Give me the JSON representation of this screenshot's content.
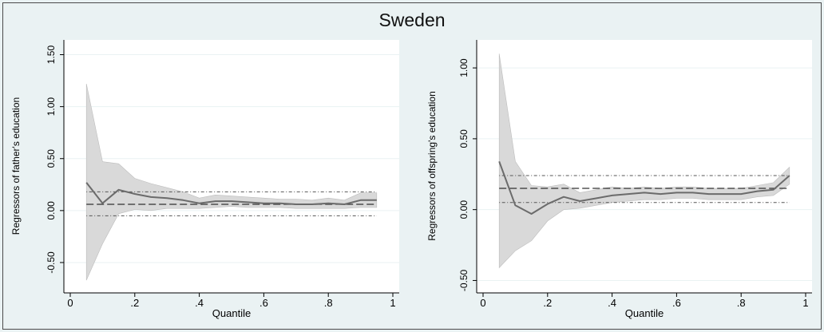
{
  "title": "Sweden",
  "chart_data": [
    {
      "type": "line",
      "xlabel": "Quantile",
      "ylabel": "Regressors of father's education",
      "xlim": [
        0,
        1
      ],
      "ylim": [
        -0.7,
        1.55
      ],
      "xticks": [
        0,
        0.2,
        0.4,
        0.6,
        0.8,
        1
      ],
      "xtick_labels": [
        "0",
        ".2",
        ".4",
        ".6",
        ".8",
        "1"
      ],
      "yticks": [
        -0.5,
        0,
        0.5,
        1,
        1.5
      ],
      "ytick_labels": [
        "-0.50",
        "0.00",
        "0.50",
        "1.00",
        "1.50"
      ],
      "grid": true,
      "x": [
        0.05,
        0.1,
        0.15,
        0.2,
        0.25,
        0.3,
        0.35,
        0.4,
        0.45,
        0.5,
        0.55,
        0.6,
        0.65,
        0.7,
        0.75,
        0.8,
        0.85,
        0.9,
        0.95
      ],
      "series": [
        {
          "role": "estimate",
          "values": [
            0.27,
            0.07,
            0.2,
            0.16,
            0.13,
            0.12,
            0.1,
            0.07,
            0.09,
            0.09,
            0.08,
            0.07,
            0.07,
            0.06,
            0.06,
            0.07,
            0.06,
            0.1,
            0.1
          ]
        },
        {
          "role": "ci_upper",
          "values": [
            1.22,
            0.47,
            0.45,
            0.31,
            0.26,
            0.22,
            0.18,
            0.12,
            0.15,
            0.14,
            0.13,
            0.12,
            0.11,
            0.11,
            0.1,
            0.12,
            0.1,
            0.17,
            0.17
          ]
        },
        {
          "role": "ci_lower",
          "values": [
            -0.67,
            -0.32,
            -0.03,
            0.01,
            0.0,
            0.02,
            0.02,
            0.02,
            0.03,
            0.04,
            0.03,
            0.03,
            0.03,
            0.02,
            0.02,
            0.02,
            0.02,
            0.03,
            0.03
          ]
        }
      ],
      "reference_lines": {
        "dashed": 0.06,
        "dotted_upper": 0.18,
        "dotted_lower": -0.05
      }
    },
    {
      "type": "line",
      "xlabel": "Quantile",
      "ylabel": "Regressors of offspring's education",
      "xlim": [
        0,
        1
      ],
      "ylim": [
        -0.52,
        1.13
      ],
      "xticks": [
        0,
        0.2,
        0.4,
        0.6,
        0.8,
        1
      ],
      "xtick_labels": [
        "0",
        ".2",
        ".4",
        ".6",
        ".8",
        "1"
      ],
      "yticks": [
        -0.5,
        0,
        0.5,
        1
      ],
      "ytick_labels": [
        "-0.50",
        "0.00",
        "0.50",
        "1.00"
      ],
      "grid": true,
      "x": [
        0.05,
        0.1,
        0.15,
        0.2,
        0.25,
        0.3,
        0.35,
        0.4,
        0.45,
        0.5,
        0.55,
        0.6,
        0.65,
        0.7,
        0.75,
        0.8,
        0.85,
        0.9,
        0.95
      ],
      "series": [
        {
          "role": "estimate",
          "values": [
            0.34,
            0.03,
            -0.03,
            0.04,
            0.09,
            0.06,
            0.08,
            0.1,
            0.11,
            0.12,
            0.11,
            0.12,
            0.12,
            0.11,
            0.11,
            0.11,
            0.13,
            0.14,
            0.24
          ]
        },
        {
          "role": "ci_upper",
          "values": [
            1.1,
            0.34,
            0.17,
            0.16,
            0.18,
            0.12,
            0.14,
            0.16,
            0.15,
            0.16,
            0.15,
            0.16,
            0.16,
            0.15,
            0.15,
            0.15,
            0.17,
            0.19,
            0.3
          ]
        },
        {
          "role": "ci_lower",
          "values": [
            -0.41,
            -0.29,
            -0.22,
            -0.08,
            0.0,
            0.01,
            0.03,
            0.05,
            0.06,
            0.07,
            0.07,
            0.08,
            0.08,
            0.07,
            0.07,
            0.07,
            0.09,
            0.1,
            0.18
          ]
        }
      ],
      "reference_lines": {
        "dashed": 0.15,
        "dotted_upper": 0.24,
        "dotted_lower": 0.05
      }
    }
  ],
  "colors": {
    "background": "#eaf2f3",
    "plot_background": "#ffffff",
    "ci_fill": "#d9d9d9",
    "estimate_line": "#6b6b6b",
    "reference_line": "#333333",
    "grid": "#eaf2f3"
  }
}
